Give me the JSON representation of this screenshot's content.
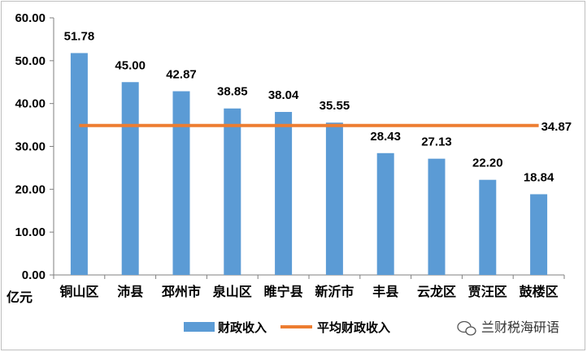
{
  "chart_data": {
    "type": "bar",
    "categories": [
      "铜山区",
      "沛县",
      "邳州市",
      "泉山区",
      "睢宁县",
      "新沂市",
      "丰县",
      "云龙区",
      "贾汪区",
      "鼓楼区"
    ],
    "series": [
      {
        "name": "财政收入",
        "type": "bar",
        "color": "#5b9bd5",
        "values": [
          51.78,
          45.0,
          42.87,
          38.85,
          38.04,
          35.55,
          28.43,
          27.13,
          22.2,
          18.84
        ],
        "labels": [
          "51.78",
          "45.00",
          "42.87",
          "38.85",
          "38.04",
          "35.55",
          "28.43",
          "27.13",
          "22.20",
          "18.84"
        ]
      },
      {
        "name": "平均财政收入",
        "type": "line",
        "color": "#ed7d31",
        "value": 34.87,
        "label": "34.87"
      }
    ],
    "ylim": [
      0,
      60
    ],
    "yticks": [
      "0.00",
      "10.00",
      "20.00",
      "30.00",
      "40.00",
      "50.00",
      "60.00"
    ],
    "ylabel": "",
    "unit_label": "亿元",
    "grid": false,
    "legend_position": "bottom"
  },
  "watermark": {
    "text": "兰财税海研语",
    "icon": "wechat-icon"
  }
}
